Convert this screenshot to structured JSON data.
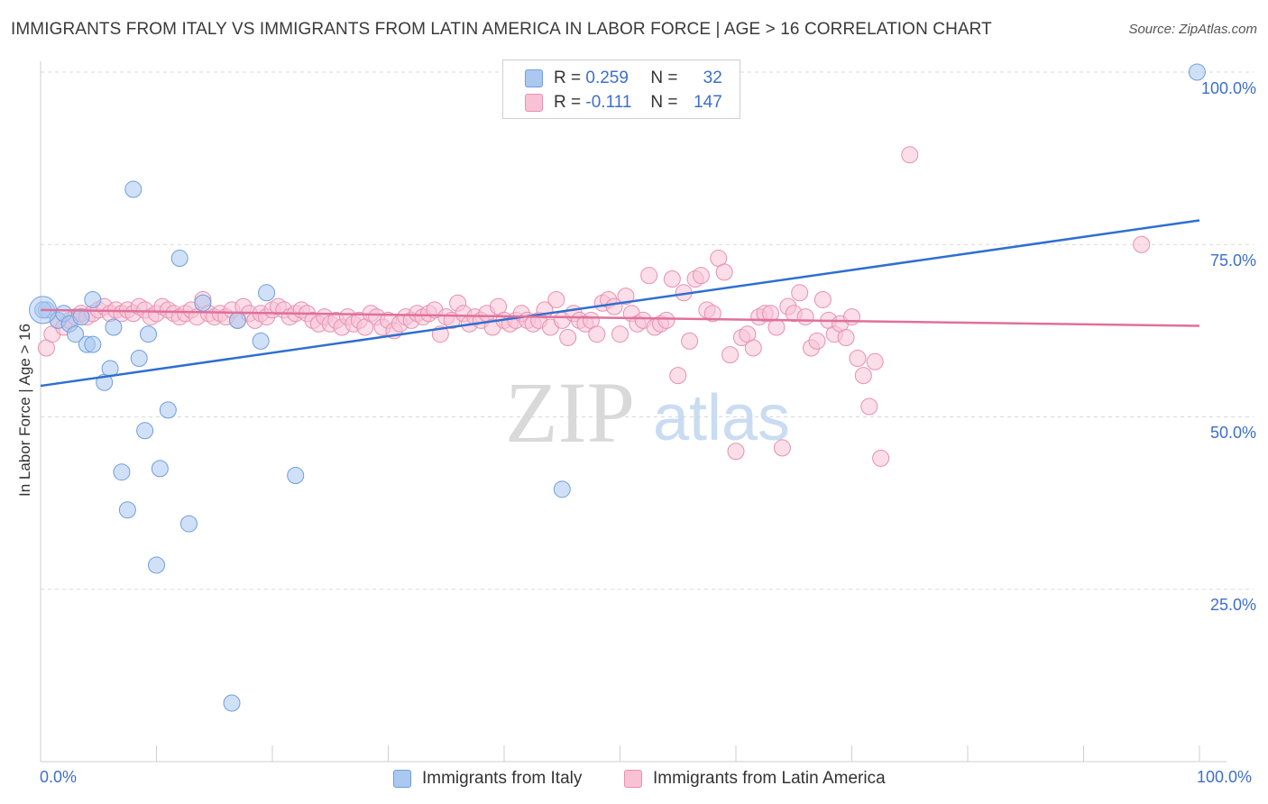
{
  "title": "IMMIGRANTS FROM ITALY VS IMMIGRANTS FROM LATIN AMERICA IN LABOR FORCE | AGE > 16 CORRELATION CHART",
  "source": "Source: ZipAtlas.com",
  "watermark": {
    "zip": "ZIP",
    "atlas": "atlas"
  },
  "legend": {
    "r_label": "R =",
    "n_label": "N =",
    "rows": [
      {
        "r": "0.259",
        "n": "32",
        "color": "#aac8f0",
        "stroke": "#6f9ee0"
      },
      {
        "r": "-0.111",
        "n": "147",
        "color": "#f8c2d5",
        "stroke": "#e890b0"
      }
    ]
  },
  "bottom_legend": [
    "Immigrants from Italy",
    "Immigrants from Latin America"
  ],
  "colors": {
    "italy_fill": "#aac8f0",
    "italy_stroke": "#6f9ee0",
    "italy_line": "#2f6fd0",
    "latam_fill": "#f8c2d5",
    "latam_stroke": "#e890b0",
    "latam_line": "#e0709a",
    "tick_text": "#3d6fcb",
    "grid": "#d9d9d9"
  },
  "chart_data": {
    "type": "scatter",
    "title": "IMMIGRANTS FROM ITALY VS IMMIGRANTS FROM LATIN AMERICA IN LABOR FORCE | AGE > 16 CORRELATION CHART",
    "xlabel": "",
    "ylabel": "In Labor Force | Age > 16",
    "xlim": [
      0,
      100
    ],
    "ylim": [
      0,
      100
    ],
    "x_tick_labels": [
      "0.0%",
      "100.0%"
    ],
    "y_ticks": [
      25,
      50,
      75,
      100
    ],
    "y_tick_labels": [
      "25.0%",
      "50.0%",
      "75.0%",
      "100.0%"
    ],
    "grid": "horizontal dashed",
    "legend_position": "top-center",
    "series": [
      {
        "name": "Immigrants from Italy",
        "r": 0.259,
        "n": 32,
        "trend": {
          "x": [
            0,
            100
          ],
          "y": [
            54.5,
            78.5
          ]
        },
        "points": [
          [
            0.5,
            65.5
          ],
          [
            1.5,
            64
          ],
          [
            2,
            65
          ],
          [
            2.5,
            63.5
          ],
          [
            3,
            62
          ],
          [
            3.5,
            64.5
          ],
          [
            4,
            60.5
          ],
          [
            4.5,
            60.5
          ],
          [
            4.5,
            67
          ],
          [
            5.5,
            55
          ],
          [
            6,
            57
          ],
          [
            6.3,
            63
          ],
          [
            8,
            83
          ],
          [
            8.5,
            58.5
          ],
          [
            9,
            48
          ],
          [
            9.3,
            62
          ],
          [
            7,
            42
          ],
          [
            7.5,
            36.5
          ],
          [
            10,
            28.5
          ],
          [
            10.3,
            42.5
          ],
          [
            11,
            51
          ],
          [
            12,
            73
          ],
          [
            12.8,
            34.5
          ],
          [
            14,
            66.5
          ],
          [
            17,
            64
          ],
          [
            16.5,
            8.5
          ],
          [
            19,
            61
          ],
          [
            19.5,
            68
          ],
          [
            22,
            41.5
          ],
          [
            45,
            39.5
          ],
          [
            99.8,
            100
          ],
          [
            0.2,
            65.5
          ]
        ]
      },
      {
        "name": "Immigrants from Latin America",
        "r": -0.111,
        "n": 147,
        "trend": {
          "x": [
            0,
            100
          ],
          "y": [
            65.5,
            63.2
          ]
        },
        "points": [
          [
            0.5,
            60
          ],
          [
            1,
            62
          ],
          [
            1.5,
            64
          ],
          [
            2,
            63
          ],
          [
            2.5,
            64
          ],
          [
            3,
            64.5
          ],
          [
            3.5,
            65
          ],
          [
            4,
            64.5
          ],
          [
            4.5,
            65
          ],
          [
            5,
            65.5
          ],
          [
            5.5,
            66
          ],
          [
            6,
            65
          ],
          [
            6.5,
            65.5
          ],
          [
            7,
            65
          ],
          [
            7.5,
            65.5
          ],
          [
            8,
            65
          ],
          [
            8.5,
            66
          ],
          [
            9,
            65.5
          ],
          [
            9.5,
            64.5
          ],
          [
            10,
            65
          ],
          [
            10.5,
            66
          ],
          [
            11,
            65.5
          ],
          [
            11.5,
            65
          ],
          [
            12,
            64.5
          ],
          [
            12.5,
            65
          ],
          [
            13,
            65.5
          ],
          [
            13.5,
            64.5
          ],
          [
            14,
            67
          ],
          [
            14.5,
            65
          ],
          [
            15,
            64.5
          ],
          [
            15.5,
            65
          ],
          [
            16,
            64.5
          ],
          [
            16.5,
            65.5
          ],
          [
            17,
            64
          ],
          [
            17.5,
            66
          ],
          [
            18,
            65
          ],
          [
            18.5,
            64
          ],
          [
            19,
            65
          ],
          [
            19.5,
            64.5
          ],
          [
            20,
            65.5
          ],
          [
            20.5,
            66
          ],
          [
            21,
            65.5
          ],
          [
            21.5,
            64.5
          ],
          [
            22,
            65
          ],
          [
            22.5,
            65.5
          ],
          [
            23,
            65
          ],
          [
            23.5,
            64
          ],
          [
            24,
            63.5
          ],
          [
            24.5,
            64.5
          ],
          [
            25,
            63.5
          ],
          [
            25.5,
            64
          ],
          [
            26,
            63
          ],
          [
            26.5,
            64.5
          ],
          [
            27,
            63.5
          ],
          [
            27.5,
            64
          ],
          [
            28,
            63
          ],
          [
            28.5,
            65
          ],
          [
            29,
            64.5
          ],
          [
            29.5,
            63
          ],
          [
            30,
            64
          ],
          [
            30.5,
            62.5
          ],
          [
            31,
            63.5
          ],
          [
            31.5,
            64.5
          ],
          [
            32,
            64
          ],
          [
            32.5,
            65
          ],
          [
            33,
            64.5
          ],
          [
            33.5,
            65
          ],
          [
            34,
            65.5
          ],
          [
            34.5,
            62
          ],
          [
            35,
            64.5
          ],
          [
            35.5,
            64
          ],
          [
            36,
            66.5
          ],
          [
            36.5,
            65
          ],
          [
            37,
            63.5
          ],
          [
            37.5,
            64.5
          ],
          [
            38,
            64
          ],
          [
            38.5,
            65
          ],
          [
            39,
            63
          ],
          [
            39.5,
            66
          ],
          [
            40,
            64
          ],
          [
            40.5,
            63.5
          ],
          [
            41,
            64
          ],
          [
            41.5,
            65
          ],
          [
            42,
            64
          ],
          [
            42.5,
            63.5
          ],
          [
            43,
            64
          ],
          [
            43.5,
            65.5
          ],
          [
            44,
            63
          ],
          [
            44.5,
            67
          ],
          [
            45,
            64
          ],
          [
            45.5,
            61.5
          ],
          [
            46,
            65
          ],
          [
            46.5,
            64
          ],
          [
            47,
            63.5
          ],
          [
            47.5,
            64
          ],
          [
            48,
            62
          ],
          [
            48.5,
            66.5
          ],
          [
            49,
            67
          ],
          [
            49.5,
            66
          ],
          [
            50,
            62
          ],
          [
            50.5,
            67.5
          ],
          [
            51,
            65
          ],
          [
            51.5,
            63.5
          ],
          [
            52,
            64
          ],
          [
            52.5,
            70.5
          ],
          [
            53,
            63
          ],
          [
            53.5,
            63.5
          ],
          [
            54,
            64
          ],
          [
            54.5,
            70
          ],
          [
            55,
            56
          ],
          [
            55.5,
            68
          ],
          [
            56,
            61
          ],
          [
            56.5,
            70
          ],
          [
            57,
            70.5
          ],
          [
            57.5,
            65.5
          ],
          [
            58,
            65
          ],
          [
            58.5,
            73
          ],
          [
            59,
            71
          ],
          [
            59.5,
            59
          ],
          [
            60,
            45
          ],
          [
            60.5,
            61.5
          ],
          [
            61,
            62
          ],
          [
            61.5,
            60
          ],
          [
            62,
            64.5
          ],
          [
            62.5,
            65
          ],
          [
            63,
            65
          ],
          [
            63.5,
            63
          ],
          [
            64,
            45.5
          ],
          [
            64.5,
            66
          ],
          [
            65,
            65
          ],
          [
            65.5,
            68
          ],
          [
            66,
            64.5
          ],
          [
            66.5,
            60
          ],
          [
            67,
            61
          ],
          [
            67.5,
            67
          ],
          [
            68,
            64
          ],
          [
            68.5,
            62
          ],
          [
            69,
            63.5
          ],
          [
            69.5,
            61.5
          ],
          [
            70,
            64.5
          ],
          [
            70.5,
            58.5
          ],
          [
            71,
            56
          ],
          [
            71.5,
            51.5
          ],
          [
            72,
            58
          ],
          [
            72.5,
            44
          ],
          [
            75,
            88
          ],
          [
            95,
            75
          ]
        ]
      }
    ]
  }
}
